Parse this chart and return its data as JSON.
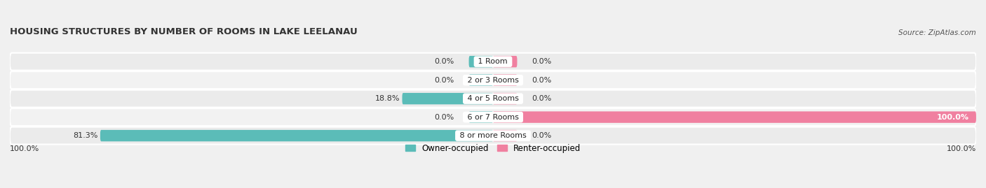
{
  "title": "HOUSING STRUCTURES BY NUMBER OF ROOMS IN LAKE LEELANAU",
  "source": "Source: ZipAtlas.com",
  "categories": [
    "1 Room",
    "2 or 3 Rooms",
    "4 or 5 Rooms",
    "6 or 7 Rooms",
    "8 or more Rooms"
  ],
  "owner_values": [
    0.0,
    0.0,
    18.8,
    0.0,
    81.3
  ],
  "renter_values": [
    0.0,
    0.0,
    0.0,
    100.0,
    0.0
  ],
  "owner_color": "#5bbcb8",
  "renter_color": "#f080a0",
  "owner_label": "Owner-occupied",
  "renter_label": "Renter-occupied",
  "xlim": 100.0,
  "min_stub": 5.0,
  "row_colors": [
    "#ebebeb",
    "#f2f2f2"
  ],
  "title_fontsize": 9.5,
  "source_fontsize": 7.5,
  "label_fontsize": 8,
  "category_fontsize": 8,
  "legend_fontsize": 8.5,
  "bar_height": 0.62
}
